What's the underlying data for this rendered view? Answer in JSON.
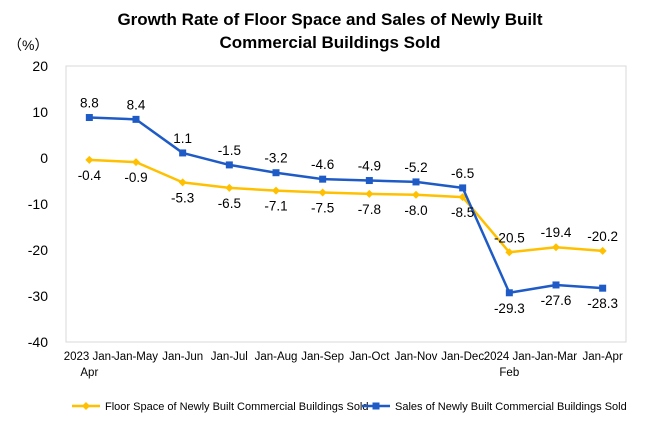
{
  "chart_data": {
    "type": "line",
    "title": "Growth Rate of Floor Space and Sales of Newly Built Commercial Buildings Sold",
    "title_lines": [
      "Growth Rate of Floor Space and Sales of Newly Built",
      "Commercial Buildings Sold"
    ],
    "unit_label": "（%）",
    "xlabel": "",
    "ylabel": "",
    "ylim": [
      -40,
      20
    ],
    "yticks": [
      "20",
      "10",
      "0",
      "-10",
      "-20",
      "-30",
      "-40"
    ],
    "categories": [
      "2023 Jan-Apr",
      "Jan-May",
      "Jan-Jun",
      "Jan-Jul",
      "Jan-Aug",
      "Jan-Sep",
      "Jan-Oct",
      "Jan-Nov",
      "Jan-Dec",
      "2024 Jan-Feb",
      "Jan-Mar",
      "Jan-Apr"
    ],
    "category_lines": [
      [
        "2023 Jan-",
        "Apr"
      ],
      [
        "Jan-May"
      ],
      [
        "Jan-Jun"
      ],
      [
        "Jan-Jul"
      ],
      [
        "Jan-Aug"
      ],
      [
        "Jan-Sep"
      ],
      [
        "Jan-Oct"
      ],
      [
        "Jan-Nov"
      ],
      [
        "Jan-Dec"
      ],
      [
        "2024 Jan-",
        "Feb"
      ],
      [
        "Jan-Mar"
      ],
      [
        "Jan-Apr"
      ]
    ],
    "grid": false,
    "legend_position": "bottom",
    "series": [
      {
        "name": "Floor Space of Newly Built Commercial Buildings Sold",
        "color": "#FFC000",
        "marker": "diamond",
        "values": [
          -0.4,
          -0.9,
          -5.3,
          -6.5,
          -7.1,
          -7.5,
          -7.8,
          -8.0,
          -8.5,
          -20.5,
          -19.4,
          -20.2
        ],
        "labels": [
          "-0.4",
          "-0.9",
          "-5.3",
          "-6.5",
          "-7.1",
          "-7.5",
          "-7.8",
          "-8.0",
          "-8.5",
          "-20.5",
          "-19.4",
          "-20.2"
        ],
        "label_side": [
          "below",
          "below",
          "below",
          "below",
          "below",
          "below",
          "below",
          "below",
          "below",
          "above",
          "above",
          "above"
        ]
      },
      {
        "name": "Sales of Newly Built Commercial Buildings Sold",
        "color": "#1F5BC6",
        "marker": "square",
        "values": [
          8.8,
          8.4,
          1.1,
          -1.5,
          -3.2,
          -4.6,
          -4.9,
          -5.2,
          -6.5,
          -29.3,
          -27.6,
          -28.3
        ],
        "labels": [
          "8.8",
          "8.4",
          "1.1",
          "-1.5",
          "-3.2",
          "-4.6",
          "-4.9",
          "-5.2",
          "-6.5",
          "-29.3",
          "-27.6",
          "-28.3"
        ],
        "label_side": [
          "above",
          "above",
          "above",
          "above",
          "above",
          "above",
          "above",
          "above",
          "above",
          "below",
          "below",
          "below"
        ]
      }
    ]
  }
}
